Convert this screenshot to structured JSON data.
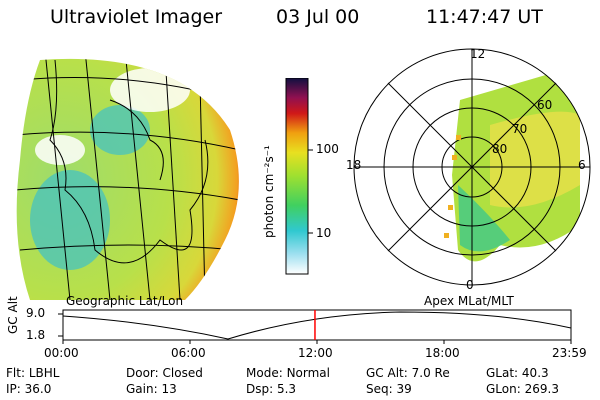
{
  "header": {
    "title": "Ultraviolet Imager",
    "date": "03 Jul 00",
    "time": "11:47:47 UT"
  },
  "colorbar": {
    "unit_label": "photon cm⁻²s⁻¹",
    "ticks": [
      "100",
      "10"
    ]
  },
  "panels": {
    "left_label": "Geographic Lat/Lon",
    "right_label": "Apex MLat/MLT"
  },
  "polar": {
    "mlt_labels": {
      "top": "12",
      "left": "18",
      "right": "6",
      "bottom": "0"
    },
    "lat_labels": [
      "60",
      "70",
      "80"
    ]
  },
  "timeline": {
    "axis_label": "GC Alt",
    "y_ticks": [
      "9.0",
      "1.8"
    ],
    "x_ticks": [
      "00:00",
      "06:00",
      "12:00",
      "18:00",
      "23:59"
    ],
    "current_time_fraction": 0.496
  },
  "status": {
    "row1": [
      {
        "label": "Flt:",
        "value": "LBHL"
      },
      {
        "label": "Door:",
        "value": "Closed"
      },
      {
        "label": "Mode:",
        "value": "Normal"
      },
      {
        "label": "GC Alt:",
        "value": "7.0 Re"
      },
      {
        "label": "GLat:",
        "value": "40.3"
      }
    ],
    "row2": [
      {
        "label": "IP:",
        "value": "36.0"
      },
      {
        "label": "Gain:",
        "value": "13"
      },
      {
        "label": "Dsp:",
        "value": "5.3"
      },
      {
        "label": "Seq:",
        "value": "39"
      },
      {
        "label": "GLon:",
        "value": "269.3"
      }
    ]
  },
  "colors": {
    "marker": "#ff0000"
  }
}
